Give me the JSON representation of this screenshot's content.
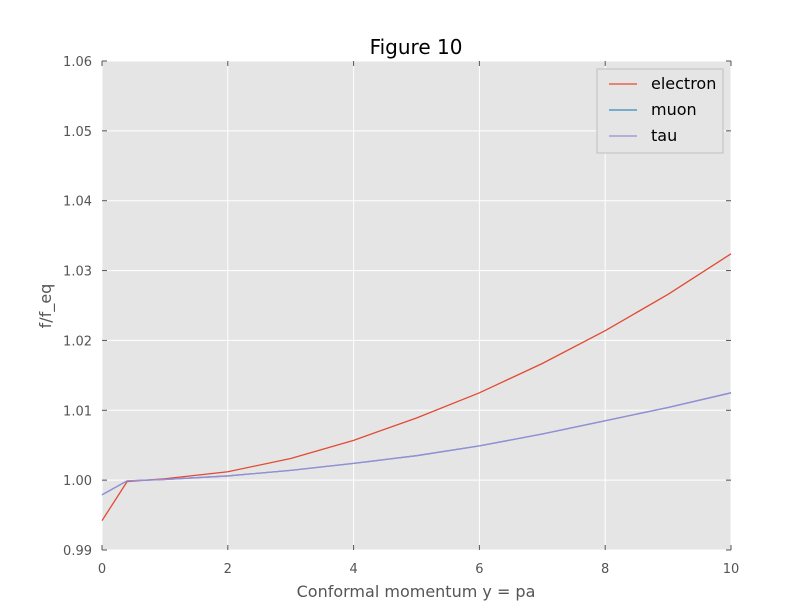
{
  "chart_data": {
    "type": "line",
    "title": "Figure 10",
    "xlabel": "Conformal momentum y = pa",
    "ylabel": "f/f_eq",
    "xlim": [
      0,
      10
    ],
    "ylim": [
      0.99,
      1.06
    ],
    "xticks": [
      0,
      2,
      4,
      6,
      8,
      10
    ],
    "xtick_labels": [
      "0",
      "2",
      "4",
      "6",
      "8",
      "10"
    ],
    "yticks": [
      0.99,
      1.0,
      1.01,
      1.02,
      1.03,
      1.04,
      1.05,
      1.06
    ],
    "ytick_labels": [
      "0.99",
      "1.00",
      "1.01",
      "1.02",
      "1.03",
      "1.04",
      "1.05",
      "1.06"
    ],
    "grid": true,
    "legend_position": "top-right",
    "background": "#e5e5e5",
    "x": [
      0,
      0.4,
      1,
      2,
      3,
      4,
      5,
      6,
      7,
      8,
      9,
      10
    ],
    "series": [
      {
        "name": "electron",
        "color": "#e24a33",
        "values": [
          0.9942,
          0.9998,
          1.0002,
          1.0012,
          1.0031,
          1.0057,
          1.0089,
          1.0125,
          1.0167,
          1.0214,
          1.0266,
          1.0324
        ]
      },
      {
        "name": "muon",
        "color": "#348abd",
        "values": [
          0.9979,
          0.9999,
          1.0001,
          1.0006,
          1.0014,
          1.0024,
          1.0035,
          1.0049,
          1.0066,
          1.0085,
          1.0104,
          1.0125
        ]
      },
      {
        "name": "tau",
        "color": "#988ed5",
        "values": [
          0.9979,
          0.9999,
          1.0001,
          1.0006,
          1.0014,
          1.0024,
          1.0035,
          1.0049,
          1.0066,
          1.0085,
          1.0104,
          1.0125
        ]
      }
    ]
  }
}
